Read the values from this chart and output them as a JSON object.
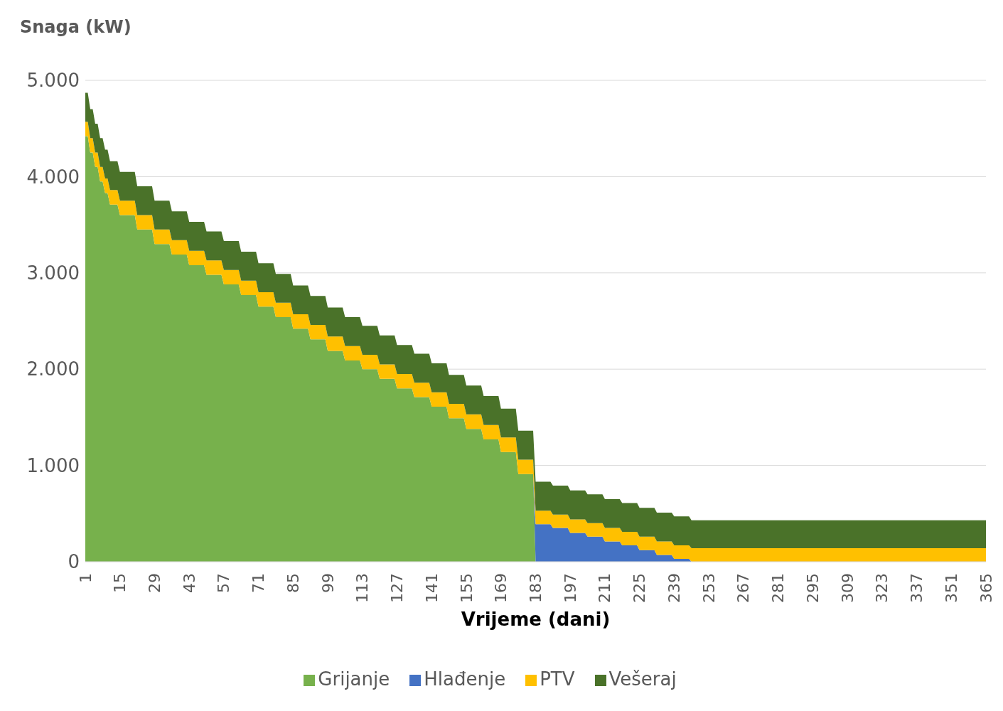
{
  "chart_data": {
    "type": "area",
    "stacked": true,
    "ylabel": "Snaga (kW)",
    "xlabel": "Vrijeme (dani)",
    "x": [
      1,
      2,
      3,
      4,
      5,
      6,
      7,
      8,
      9,
      10,
      11,
      14,
      15,
      21,
      22,
      28,
      29,
      35,
      36,
      42,
      43,
      49,
      50,
      56,
      57,
      63,
      64,
      70,
      71,
      77,
      78,
      84,
      85,
      91,
      92,
      98,
      99,
      105,
      106,
      112,
      113,
      119,
      120,
      126,
      127,
      133,
      134,
      140,
      141,
      147,
      148,
      154,
      155,
      161,
      162,
      168,
      169,
      175,
      176,
      182,
      183,
      189,
      190,
      196,
      197,
      203,
      204,
      210,
      211,
      217,
      218,
      224,
      225,
      231,
      232,
      238,
      239,
      245,
      246,
      365
    ],
    "series": [
      {
        "name": "Grijanje",
        "color": "#77b14c",
        "values": [
          4420,
          4420,
          4250,
          4250,
          4100,
          4100,
          3950,
          3950,
          3830,
          3830,
          3710,
          3710,
          3600,
          3600,
          3450,
          3450,
          3300,
          3300,
          3190,
          3190,
          3080,
          3080,
          2980,
          2980,
          2880,
          2880,
          2770,
          2770,
          2650,
          2650,
          2540,
          2540,
          2420,
          2420,
          2310,
          2310,
          2190,
          2190,
          2090,
          2090,
          2000,
          2000,
          1900,
          1900,
          1800,
          1800,
          1710,
          1710,
          1610,
          1610,
          1490,
          1490,
          1380,
          1380,
          1270,
          1270,
          1140,
          1140,
          910,
          910,
          0,
          null,
          null,
          null,
          null,
          null,
          null,
          null,
          null,
          null,
          null,
          null,
          null,
          null,
          null,
          null,
          null,
          null,
          null,
          null
        ]
      },
      {
        "name": "Hlađenje",
        "color": "#4472c4",
        "values": [
          null,
          null,
          null,
          null,
          null,
          null,
          null,
          null,
          null,
          null,
          null,
          null,
          null,
          null,
          null,
          null,
          null,
          null,
          null,
          null,
          null,
          null,
          null,
          null,
          null,
          null,
          null,
          null,
          null,
          null,
          null,
          null,
          null,
          null,
          null,
          null,
          null,
          null,
          null,
          null,
          null,
          null,
          null,
          null,
          null,
          null,
          null,
          null,
          null,
          null,
          null,
          null,
          null,
          null,
          null,
          null,
          null,
          null,
          null,
          0,
          390,
          390,
          350,
          350,
          300,
          300,
          260,
          260,
          210,
          210,
          170,
          170,
          120,
          120,
          70,
          70,
          30,
          30,
          0,
          null
        ]
      },
      {
        "name": "PTV",
        "color": "#ffc000",
        "values": [
          150,
          150,
          150,
          150,
          150,
          150,
          150,
          150,
          150,
          150,
          150,
          150,
          150,
          150,
          150,
          150,
          150,
          150,
          150,
          150,
          150,
          150,
          150,
          150,
          150,
          150,
          150,
          150,
          150,
          150,
          150,
          150,
          150,
          150,
          150,
          150,
          150,
          150,
          150,
          150,
          150,
          150,
          150,
          150,
          150,
          150,
          150,
          150,
          150,
          150,
          150,
          150,
          150,
          150,
          150,
          150,
          150,
          150,
          150,
          150,
          140,
          140,
          140,
          140,
          140,
          140,
          140,
          140,
          140,
          140,
          140,
          140,
          140,
          140,
          140,
          140,
          140,
          140,
          140,
          140
        ]
      },
      {
        "name": "Vešeraj",
        "color": "#4a7229",
        "values": [
          300,
          300,
          300,
          300,
          300,
          300,
          300,
          300,
          300,
          300,
          300,
          300,
          300,
          300,
          300,
          300,
          300,
          300,
          300,
          300,
          300,
          300,
          300,
          300,
          300,
          300,
          300,
          300,
          300,
          300,
          300,
          300,
          300,
          300,
          300,
          300,
          300,
          300,
          300,
          300,
          300,
          300,
          300,
          300,
          300,
          300,
          300,
          300,
          300,
          300,
          300,
          300,
          300,
          300,
          300,
          300,
          300,
          300,
          300,
          300,
          300,
          300,
          300,
          300,
          300,
          300,
          300,
          300,
          300,
          300,
          300,
          300,
          300,
          300,
          300,
          300,
          300,
          300,
          290,
          290
        ]
      }
    ],
    "xlim": [
      1,
      365
    ],
    "xticks": [
      1,
      15,
      29,
      43,
      57,
      71,
      85,
      99,
      113,
      127,
      141,
      155,
      169,
      183,
      197,
      211,
      225,
      239,
      253,
      267,
      281,
      295,
      309,
      323,
      337,
      351,
      365
    ],
    "ylim": [
      0,
      5000
    ],
    "yticks": [
      {
        "value": 0,
        "label": "0"
      },
      {
        "value": 1000,
        "label": "1.000"
      },
      {
        "value": 2000,
        "label": "2.000"
      },
      {
        "value": 3000,
        "label": "3.000"
      },
      {
        "value": 4000,
        "label": "4.000"
      },
      {
        "value": 5000,
        "label": "5.000"
      }
    ],
    "grid": "y",
    "legend": "bottom"
  }
}
